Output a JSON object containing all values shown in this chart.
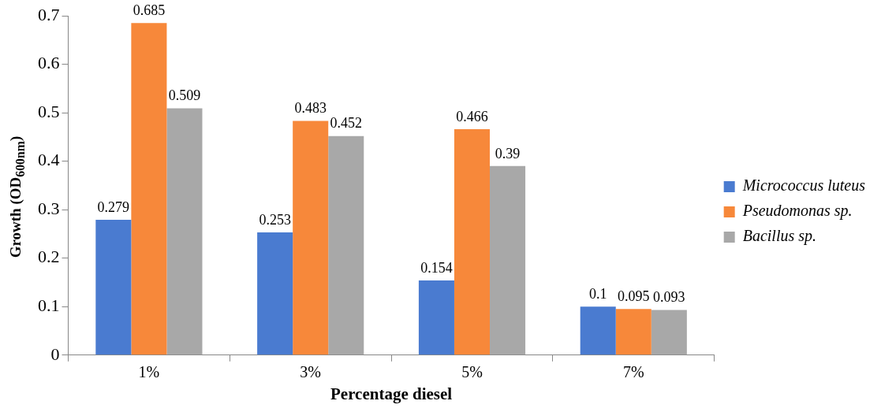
{
  "chart_data": {
    "type": "bar",
    "xlabel": "Percentage diesel",
    "ylabel": "Growth (OD$_{600nm}$)",
    "categories": [
      "1%",
      "3%",
      "5%",
      "7%"
    ],
    "series": [
      {
        "name": "Micrococcus luteus",
        "color": "#4a7bd0",
        "values": [
          0.279,
          0.253,
          0.154,
          0.1
        ]
      },
      {
        "name": "Pseudomonas sp.",
        "color": "#f7883a",
        "values": [
          0.685,
          0.483,
          0.466,
          0.095
        ]
      },
      {
        "name": "Bacillus sp.",
        "color": "#a8a8a8",
        "values": [
          0.509,
          0.452,
          0.39,
          0.093
        ]
      }
    ],
    "ylim": [
      0,
      0.7
    ],
    "yticks": [
      0,
      0.1,
      0.2,
      0.3,
      0.4,
      0.5,
      0.6,
      0.7
    ],
    "grid": false,
    "legend": "right",
    "data_labels": true
  }
}
